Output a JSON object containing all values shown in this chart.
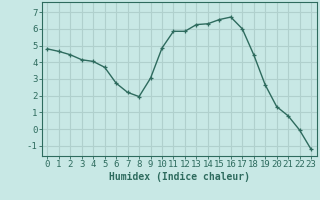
{
  "x": [
    0,
    1,
    2,
    3,
    4,
    5,
    6,
    7,
    8,
    9,
    10,
    11,
    12,
    13,
    14,
    15,
    16,
    17,
    18,
    19,
    20,
    21,
    22,
    23
  ],
  "y": [
    4.8,
    4.65,
    4.45,
    4.15,
    4.05,
    3.7,
    2.75,
    2.2,
    1.95,
    3.05,
    4.85,
    5.85,
    5.85,
    6.25,
    6.3,
    6.55,
    6.7,
    6.0,
    4.45,
    2.65,
    1.35,
    0.8,
    -0.05,
    -1.2
  ],
  "line_color": "#2e6b5e",
  "marker": "+",
  "bg_color": "#c8e8e5",
  "grid_color": "#b0d0cd",
  "xlabel": "Humidex (Indice chaleur)",
  "xlim": [
    -0.5,
    23.5
  ],
  "ylim": [
    -1.6,
    7.6
  ],
  "yticks": [
    -1,
    0,
    1,
    2,
    3,
    4,
    5,
    6,
    7
  ],
  "xticks": [
    0,
    1,
    2,
    3,
    4,
    5,
    6,
    7,
    8,
    9,
    10,
    11,
    12,
    13,
    14,
    15,
    16,
    17,
    18,
    19,
    20,
    21,
    22,
    23
  ],
  "tick_color": "#2e6b5e",
  "label_color": "#2e6b5e",
  "xlabel_fontsize": 7,
  "tick_fontsize": 6.5
}
